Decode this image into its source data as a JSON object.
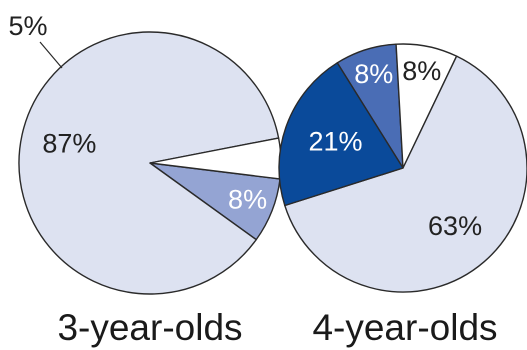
{
  "chart_data": [
    {
      "type": "pie",
      "title": "3-year-olds",
      "slices": [
        {
          "label": "87%",
          "value": 87,
          "color": "#dde2f1",
          "label_color": "#222222"
        },
        {
          "label": "5%",
          "value": 5,
          "color": "#ffffff",
          "label_color": "#222222"
        },
        {
          "label": "8%",
          "value": 8,
          "color": "#94a4d3",
          "label_color": "#ffffff"
        }
      ]
    },
    {
      "type": "pie",
      "title": "4-year-olds",
      "slices": [
        {
          "label": "63%",
          "value": 63,
          "color": "#dde2f1",
          "label_color": "#222222"
        },
        {
          "label": "21%",
          "value": 21,
          "color": "#0a4a9a",
          "label_color": "#ffffff"
        },
        {
          "label": "8%",
          "value": 8,
          "color": "#4a6db5",
          "label_color": "#ffffff"
        },
        {
          "label": "8%",
          "value": 8,
          "color": "#ffffff",
          "label_color": "#222222"
        }
      ]
    }
  ]
}
